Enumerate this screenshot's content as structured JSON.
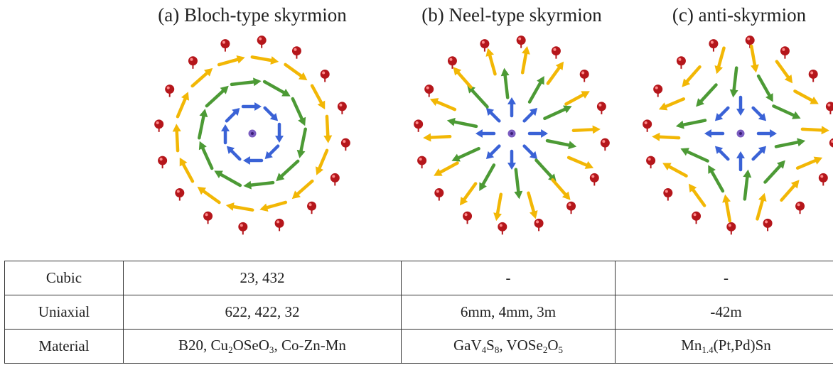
{
  "panels": [
    {
      "key": "a",
      "title": "(a) Bloch-type skyrmion",
      "kind": "bloch"
    },
    {
      "key": "b",
      "title": "(b) Neel-type skyrmion",
      "kind": "neel"
    },
    {
      "key": "c",
      "title": "(c) anti-skyrmion",
      "kind": "anti"
    }
  ],
  "colors": {
    "atom": "#b5161b",
    "outer_arrow": "#f2b705",
    "middle_arrow": "#4c9a35",
    "inner_arrow": "#3a62d6",
    "center": "#7a5cc0"
  },
  "table": {
    "rows": [
      {
        "label": "Cubic",
        "a": "23, 432",
        "b": "-",
        "c": "-"
      },
      {
        "label": "Uniaxial",
        "a": "622, 422, 32",
        "b": "6mm, 4mm, 3m",
        "c": "-42m"
      },
      {
        "label": "Material",
        "a": [
          {
            "t": "B20, Cu"
          },
          {
            "s": "2"
          },
          {
            "t": "OSeO"
          },
          {
            "s": "3"
          },
          {
            "t": ", Co-Zn-Mn"
          }
        ],
        "b": [
          {
            "t": "GaV"
          },
          {
            "s": "4"
          },
          {
            "t": "S"
          },
          {
            "s": "8"
          },
          {
            "t": ", VOSe"
          },
          {
            "s": "2"
          },
          {
            "t": "O"
          },
          {
            "s": "5"
          }
        ],
        "c": [
          {
            "t": "Mn"
          },
          {
            "s": "1.4"
          },
          {
            "t": "(Pt,Pd)Sn"
          }
        ]
      }
    ]
  }
}
